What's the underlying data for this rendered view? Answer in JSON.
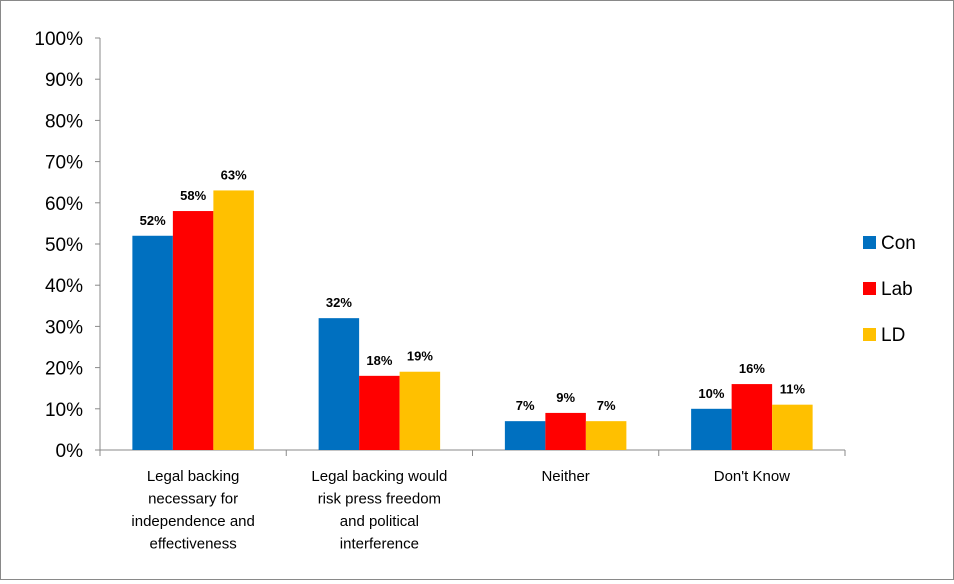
{
  "chart_data": {
    "type": "bar",
    "title": "",
    "xlabel": "",
    "ylabel": "",
    "ylim": [
      0,
      100
    ],
    "yticks": [
      "0%",
      "10%",
      "20%",
      "30%",
      "40%",
      "50%",
      "60%",
      "70%",
      "80%",
      "90%",
      "100%"
    ],
    "grid": false,
    "legend_position": "right",
    "categories": [
      [
        "Legal backing",
        "necessary for",
        "independence  and",
        "effectiveness"
      ],
      [
        "Legal backing would",
        "risk press freedom",
        "and political",
        "interference"
      ],
      [
        "Neither"
      ],
      [
        "Don't Know"
      ]
    ],
    "series": [
      {
        "name": "Con",
        "color": "#0070C0",
        "values": [
          52,
          32,
          7,
          10
        ],
        "labels": [
          "52%",
          "32%",
          "7%",
          "10%"
        ]
      },
      {
        "name": "Lab",
        "color": "#FF0000",
        "values": [
          58,
          18,
          9,
          16
        ],
        "labels": [
          "58%",
          "18%",
          "9%",
          "16%"
        ]
      },
      {
        "name": "LD",
        "color": "#FFC000",
        "values": [
          63,
          19,
          7,
          11
        ],
        "labels": [
          "63%",
          "19%",
          "7%",
          "11%"
        ]
      }
    ]
  }
}
